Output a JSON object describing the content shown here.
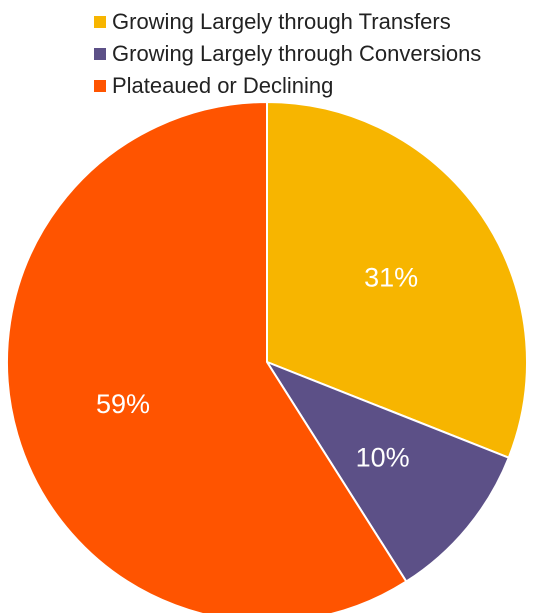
{
  "chart_data": {
    "type": "pie",
    "categories": [
      "Growing Largely through Transfers",
      "Growing Largely through Conversions",
      "Plateaued or Declining"
    ],
    "values": [
      31,
      10,
      59
    ],
    "data_labels": [
      "31%",
      "10%",
      "59%"
    ],
    "colors": [
      "#F7B500",
      "#5C5087",
      "#FF5400"
    ],
    "start_angle_deg": 0,
    "direction": "clockwise",
    "legend_position": "top"
  }
}
